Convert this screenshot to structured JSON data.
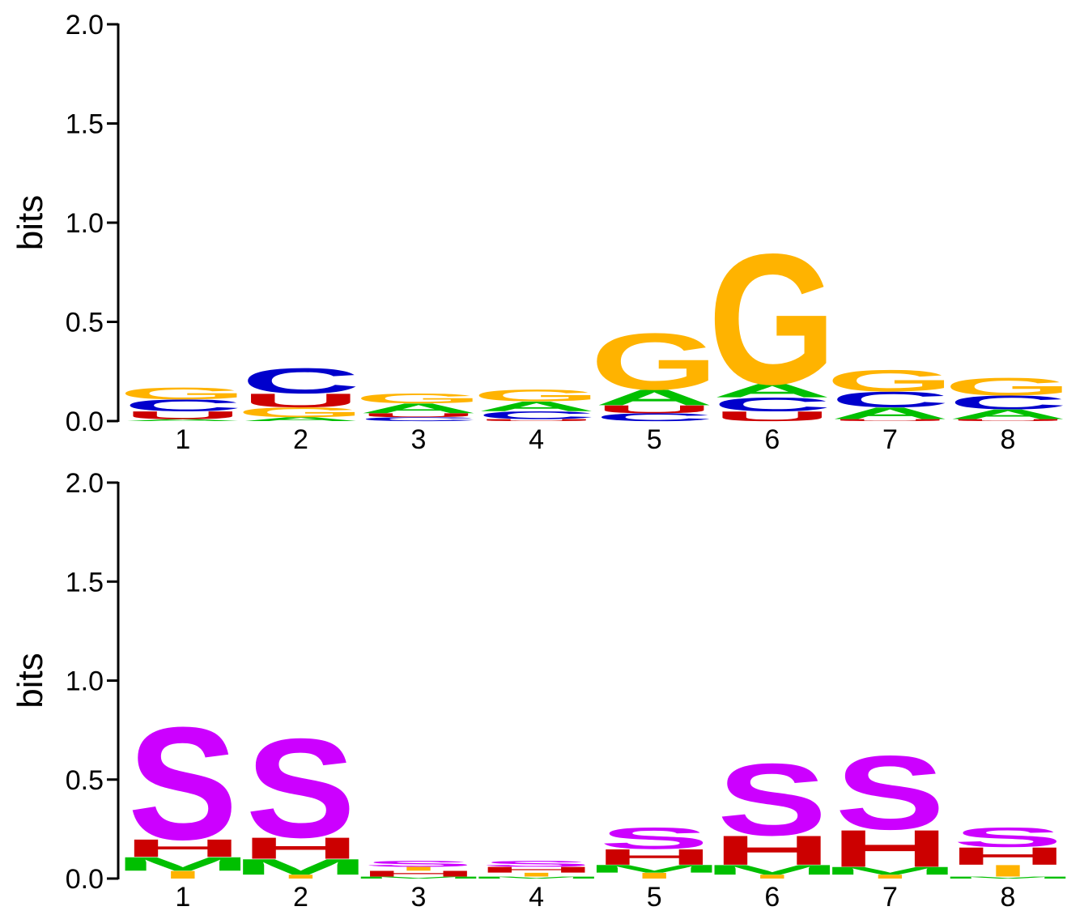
{
  "colors": {
    "A": "#00bf00",
    "C": "#0000cc",
    "G": "#ffb300",
    "U": "#cc0000",
    "H": "#cc0000",
    "S": "#cc00ff",
    "M": "#00bf00",
    "I": "#ffb300",
    "axis": "#000000"
  },
  "chart_data": [
    {
      "type": "sequence-logo",
      "ylabel": "bits",
      "ylim": [
        0,
        2
      ],
      "yticks": [
        "0.0",
        "0.5",
        "1.0",
        "1.5",
        "2.0"
      ],
      "positions": [
        "1",
        "2",
        "3",
        "4",
        "5",
        "6",
        "7",
        "8"
      ],
      "stacks": [
        [
          {
            "letter": "A",
            "bits": 0.01
          },
          {
            "letter": "U",
            "bits": 0.04
          },
          {
            "letter": "C",
            "bits": 0.06
          },
          {
            "letter": "G",
            "bits": 0.06
          }
        ],
        [
          {
            "letter": "A",
            "bits": 0.02
          },
          {
            "letter": "G",
            "bits": 0.05
          },
          {
            "letter": "U",
            "bits": 0.07
          },
          {
            "letter": "C",
            "bits": 0.13
          }
        ],
        [
          {
            "letter": "C",
            "bits": 0.02
          },
          {
            "letter": "U",
            "bits": 0.02
          },
          {
            "letter": "A",
            "bits": 0.05
          },
          {
            "letter": "G",
            "bits": 0.05
          }
        ],
        [
          {
            "letter": "U",
            "bits": 0.01
          },
          {
            "letter": "C",
            "bits": 0.04
          },
          {
            "letter": "A",
            "bits": 0.05
          },
          {
            "letter": "G",
            "bits": 0.06
          }
        ],
        [
          {
            "letter": "C",
            "bits": 0.04
          },
          {
            "letter": "U",
            "bits": 0.04
          },
          {
            "letter": "A",
            "bits": 0.08
          },
          {
            "letter": "G",
            "bits": 0.29
          }
        ],
        [
          {
            "letter": "U",
            "bits": 0.05
          },
          {
            "letter": "C",
            "bits": 0.07
          },
          {
            "letter": "A",
            "bits": 0.07
          },
          {
            "letter": "G",
            "bits": 0.67
          }
        ],
        [
          {
            "letter": "U",
            "bits": 0.01
          },
          {
            "letter": "A",
            "bits": 0.06
          },
          {
            "letter": "C",
            "bits": 0.08
          },
          {
            "letter": "G",
            "bits": 0.11
          }
        ],
        [
          {
            "letter": "U",
            "bits": 0.01
          },
          {
            "letter": "A",
            "bits": 0.05
          },
          {
            "letter": "C",
            "bits": 0.07
          },
          {
            "letter": "G",
            "bits": 0.09
          }
        ]
      ]
    },
    {
      "type": "sequence-logo",
      "ylabel": "bits",
      "ylim": [
        0,
        2
      ],
      "yticks": [
        "0.0",
        "0.5",
        "1.0",
        "1.5",
        "2.0"
      ],
      "positions": [
        "1",
        "2",
        "3",
        "4",
        "5",
        "6",
        "7",
        "8"
      ],
      "stacks": [
        [
          {
            "letter": "I",
            "bits": 0.04
          },
          {
            "letter": "M",
            "bits": 0.07
          },
          {
            "letter": "H",
            "bits": 0.09
          },
          {
            "letter": "S",
            "bits": 0.58
          }
        ],
        [
          {
            "letter": "I",
            "bits": 0.02
          },
          {
            "letter": "M",
            "bits": 0.08
          },
          {
            "letter": "H",
            "bits": 0.11
          },
          {
            "letter": "S",
            "bits": 0.51
          }
        ],
        [
          {
            "letter": "M",
            "bits": 0.01
          },
          {
            "letter": "H",
            "bits": 0.03
          },
          {
            "letter": "I",
            "bits": 0.02
          },
          {
            "letter": "S",
            "bits": 0.03
          }
        ],
        [
          {
            "letter": "M",
            "bits": 0.01
          },
          {
            "letter": "I",
            "bits": 0.02
          },
          {
            "letter": "H",
            "bits": 0.03
          },
          {
            "letter": "S",
            "bits": 0.03
          }
        ],
        [
          {
            "letter": "I",
            "bits": 0.03
          },
          {
            "letter": "M",
            "bits": 0.04
          },
          {
            "letter": "H",
            "bits": 0.08
          },
          {
            "letter": "S",
            "bits": 0.11
          }
        ],
        [
          {
            "letter": "I",
            "bits": 0.02
          },
          {
            "letter": "M",
            "bits": 0.05
          },
          {
            "letter": "H",
            "bits": 0.15
          },
          {
            "letter": "S",
            "bits": 0.37
          }
        ],
        [
          {
            "letter": "I",
            "bits": 0.02
          },
          {
            "letter": "M",
            "bits": 0.04
          },
          {
            "letter": "H",
            "bits": 0.19
          },
          {
            "letter": "S",
            "bits": 0.38
          }
        ],
        [
          {
            "letter": "M",
            "bits": 0.01
          },
          {
            "letter": "I",
            "bits": 0.06
          },
          {
            "letter": "H",
            "bits": 0.09
          },
          {
            "letter": "S",
            "bits": 0.1
          }
        ]
      ]
    }
  ]
}
